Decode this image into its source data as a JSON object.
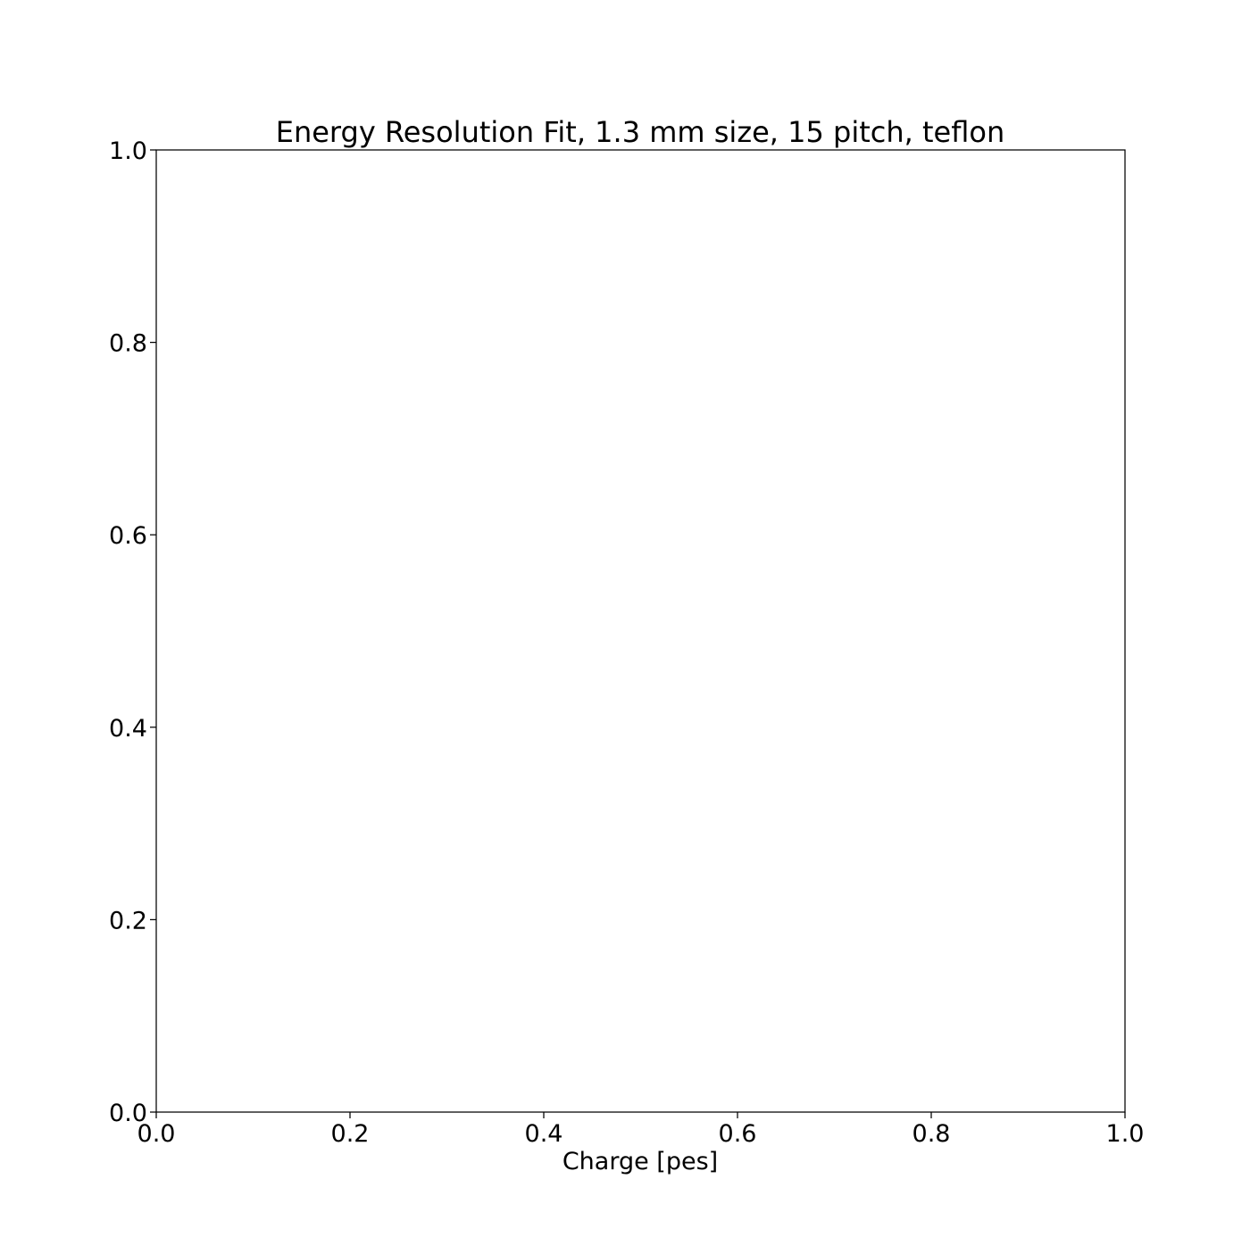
{
  "chart_data": {
    "type": "line",
    "title": "Energy Resolution Fit, 1.3 mm size, 15 pitch, teflon",
    "xlabel": "Charge [pes]",
    "ylabel": "",
    "xlim": [
      0.0,
      1.0
    ],
    "ylim": [
      0.0,
      1.0
    ],
    "x_ticks": [
      0.0,
      0.2,
      0.4,
      0.6,
      0.8,
      1.0
    ],
    "x_tick_labels": [
      "0.0",
      "0.2",
      "0.4",
      "0.6",
      "0.8",
      "1.0"
    ],
    "y_ticks": [
      0.0,
      0.2,
      0.4,
      0.6,
      0.8,
      1.0
    ],
    "y_tick_labels": [
      "0.0",
      "0.2",
      "0.4",
      "0.6",
      "0.8",
      "1.0"
    ],
    "grid": false,
    "series": []
  },
  "colors": {
    "axis": "#000000",
    "background": "#ffffff"
  }
}
